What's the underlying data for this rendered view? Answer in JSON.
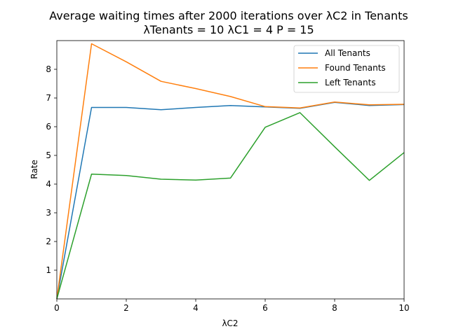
{
  "chart_data": {
    "type": "line",
    "title": "Average waiting times after 2000 iterations over λC2 in Tenants",
    "subtitle": "λTenants = 10 λC1 = 4 P = 15",
    "xlabel": "λC2",
    "ylabel": "Rate",
    "xlim": [
      0,
      10
    ],
    "ylim": [
      0,
      9
    ],
    "xticks": [
      0,
      2,
      4,
      6,
      8,
      10
    ],
    "yticks": [
      1,
      2,
      3,
      4,
      5,
      6,
      7,
      8
    ],
    "grid": false,
    "legend_position": "top-right",
    "x": [
      0,
      1,
      2,
      3,
      4,
      5,
      6,
      7,
      8,
      9,
      10
    ],
    "series": [
      {
        "name": "All Tenants",
        "color": "#1f77b4",
        "values": [
          0.0,
          6.67,
          6.67,
          6.59,
          6.67,
          6.74,
          6.69,
          6.64,
          6.85,
          6.74,
          6.77
        ]
      },
      {
        "name": "Found Tenants",
        "color": "#ff7f0e",
        "values": [
          0.0,
          8.89,
          8.26,
          7.58,
          7.33,
          7.05,
          6.7,
          6.65,
          6.86,
          6.76,
          6.78
        ]
      },
      {
        "name": "Left Tenants",
        "color": "#2ca02c",
        "values": [
          0.0,
          4.35,
          4.3,
          4.17,
          4.14,
          4.21,
          5.98,
          6.49,
          5.3,
          4.13,
          5.1
        ]
      }
    ]
  }
}
